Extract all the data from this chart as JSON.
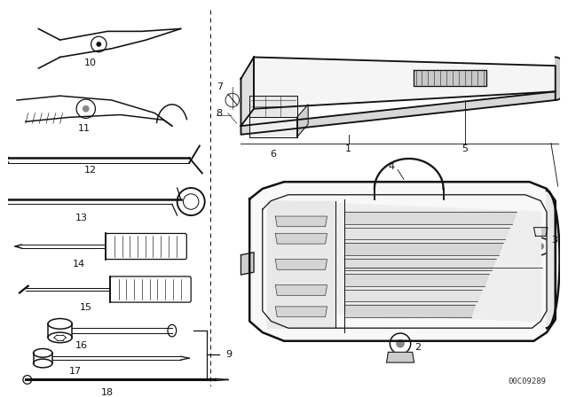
{
  "background_color": "#ffffff",
  "figure_width": 6.4,
  "figure_height": 4.48,
  "dpi": 100,
  "diagram_code": "00C09289",
  "line_color": "#111111",
  "line_width": 0.9,
  "gray_color": "#666666",
  "light_gray": "#aaaaaa"
}
